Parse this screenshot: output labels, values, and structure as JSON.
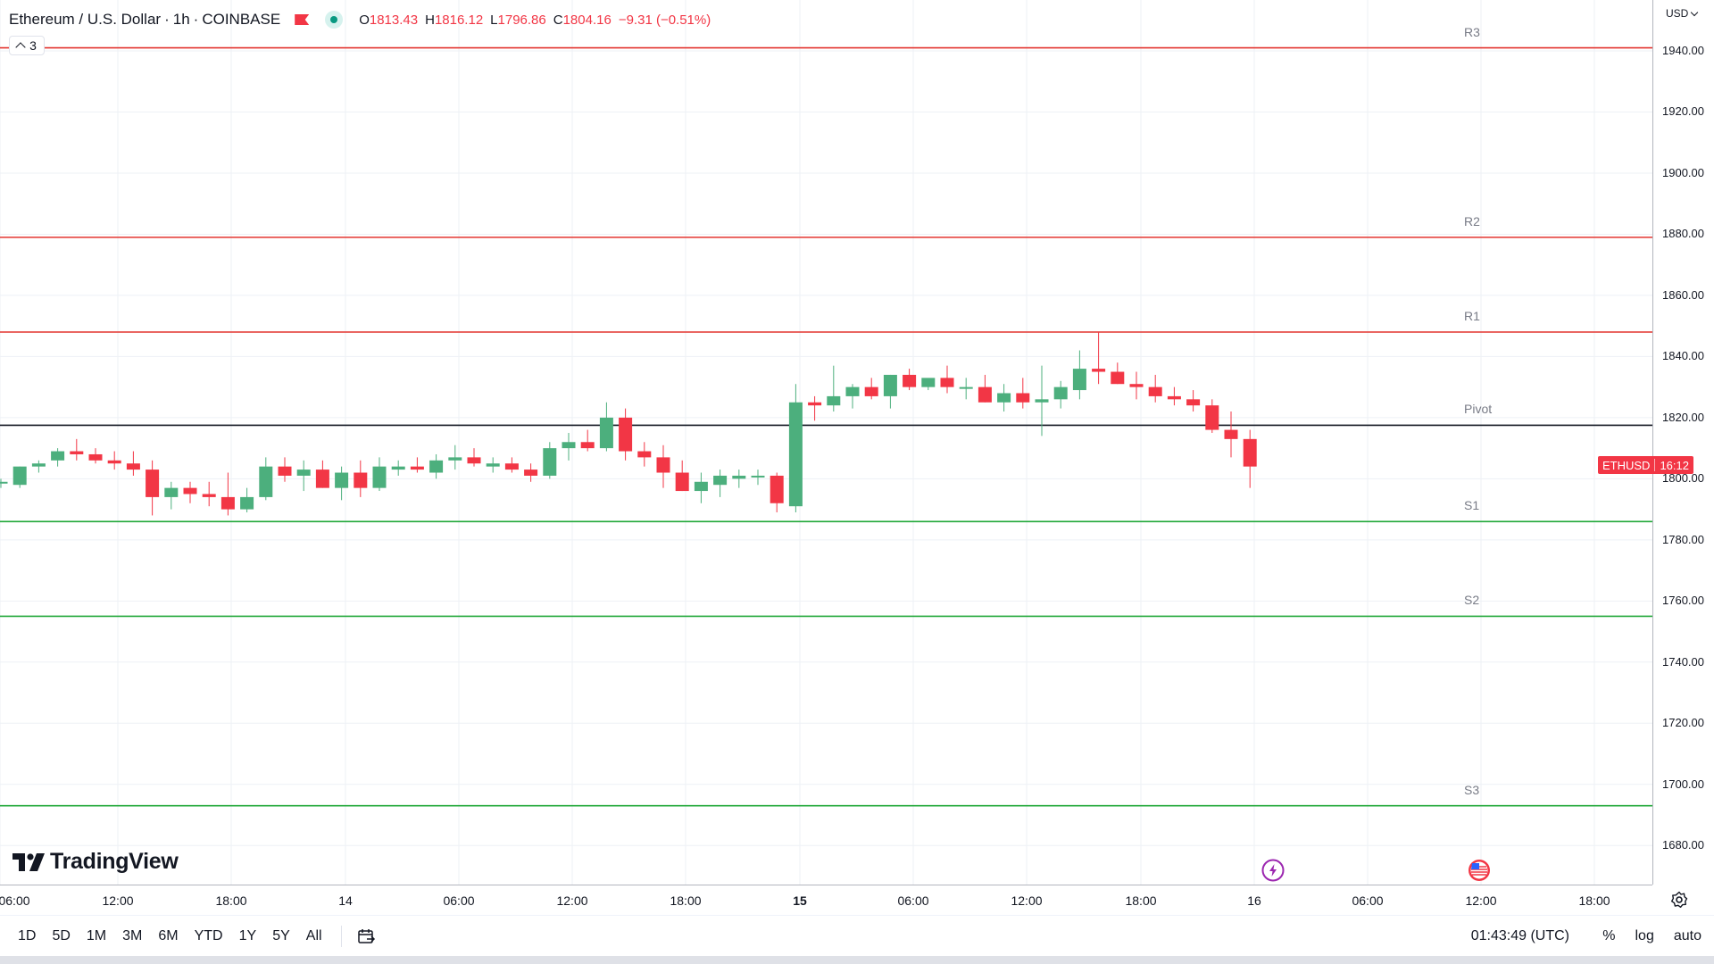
{
  "header": {
    "symbol_title": "Ethereum / U.S. Dollar",
    "interval": "1h",
    "exchange": "COINBASE",
    "ohlc": {
      "open_key": "O",
      "open": "1813.43",
      "high_key": "H",
      "high": "1816.12",
      "low_key": "L",
      "low": "1796.86",
      "close_key": "C",
      "close": "1804.16",
      "change": "−9.31 (−0.51%)"
    },
    "collapse_count": "3"
  },
  "colors": {
    "up": "#4caf7d",
    "down": "#f23645",
    "resistance": "#e3342f",
    "support": "#22a83a",
    "pivot": "#131722",
    "grid": "#eef1f6"
  },
  "levels": [
    {
      "name": "R3",
      "price": 1941.0,
      "color": "resistance"
    },
    {
      "name": "R2",
      "price": 1879.0,
      "color": "resistance"
    },
    {
      "name": "R1",
      "price": 1848.0,
      "color": "resistance"
    },
    {
      "name": "Pivot",
      "price": 1817.5,
      "color": "pivot"
    },
    {
      "name": "S1",
      "price": 1786.0,
      "color": "support"
    },
    {
      "name": "S2",
      "price": 1755.0,
      "color": "support"
    },
    {
      "name": "S3",
      "price": 1693.0,
      "color": "support"
    }
  ],
  "price_axis": {
    "currency": "USD",
    "ticks": [
      "1940.00",
      "1920.00",
      "1900.00",
      "1880.00",
      "1860.00",
      "1840.00",
      "1820.00",
      "1800.00",
      "1780.00",
      "1760.00",
      "1740.00",
      "1720.00",
      "1700.00",
      "1680.00"
    ]
  },
  "last_price_tag": {
    "symbol": "ETHUSD",
    "countdown": "16:12"
  },
  "time_axis": {
    "ticks": [
      "06:00",
      "12:00",
      "18:00",
      "14",
      "06:00",
      "12:00",
      "18:00",
      "15",
      "06:00",
      "12:00",
      "18:00",
      "16",
      "06:00",
      "12:00",
      "18:00"
    ],
    "bold": [
      false,
      false,
      false,
      false,
      false,
      false,
      false,
      true,
      false,
      false,
      false,
      false,
      false,
      false,
      false
    ]
  },
  "chart_data": {
    "type": "candlestick",
    "interval": "1h",
    "ylim": [
      1670,
      1950
    ],
    "candles": [
      [
        1799,
        1800,
        1797,
        1799
      ],
      [
        1798,
        1804,
        1797,
        1804
      ],
      [
        1804,
        1806,
        1802,
        1805
      ],
      [
        1806,
        1810,
        1804,
        1809
      ],
      [
        1809,
        1813,
        1806,
        1808
      ],
      [
        1808,
        1810,
        1805,
        1806
      ],
      [
        1806,
        1809,
        1803,
        1805
      ],
      [
        1805,
        1809,
        1801,
        1803
      ],
      [
        1803,
        1806,
        1788,
        1794
      ],
      [
        1794,
        1799,
        1790,
        1797
      ],
      [
        1797,
        1799,
        1792,
        1795
      ],
      [
        1795,
        1799,
        1791,
        1794
      ],
      [
        1794,
        1802,
        1788,
        1790
      ],
      [
        1790,
        1797,
        1789,
        1794
      ],
      [
        1794,
        1807,
        1793,
        1804
      ],
      [
        1804,
        1807,
        1799,
        1801
      ],
      [
        1801,
        1806,
        1796,
        1803
      ],
      [
        1803,
        1806,
        1797,
        1797
      ],
      [
        1797,
        1804,
        1793,
        1802
      ],
      [
        1802,
        1806,
        1794,
        1797
      ],
      [
        1797,
        1807,
        1796,
        1804
      ],
      [
        1803,
        1806,
        1801,
        1804
      ],
      [
        1804,
        1807,
        1802,
        1803
      ],
      [
        1802,
        1808,
        1800,
        1806
      ],
      [
        1806,
        1811,
        1803,
        1807
      ],
      [
        1807,
        1810,
        1804,
        1805
      ],
      [
        1804,
        1807,
        1802,
        1805
      ],
      [
        1805,
        1807,
        1802,
        1803
      ],
      [
        1803,
        1805,
        1799,
        1801
      ],
      [
        1801,
        1812,
        1800,
        1810
      ],
      [
        1810,
        1815,
        1806,
        1812
      ],
      [
        1812,
        1816,
        1809,
        1810
      ],
      [
        1810,
        1825,
        1809,
        1820
      ],
      [
        1820,
        1823,
        1806,
        1809
      ],
      [
        1809,
        1812,
        1804,
        1807
      ],
      [
        1807,
        1811,
        1797,
        1802
      ],
      [
        1802,
        1806,
        1796,
        1796
      ],
      [
        1796,
        1802,
        1792,
        1799
      ],
      [
        1798,
        1803,
        1794,
        1801
      ],
      [
        1800,
        1803,
        1797,
        1801
      ],
      [
        1801,
        1803,
        1798,
        1801
      ],
      [
        1801,
        1802,
        1789,
        1792
      ],
      [
        1791,
        1831,
        1789,
        1825
      ],
      [
        1825,
        1827,
        1819,
        1824
      ],
      [
        1824,
        1837,
        1822,
        1827
      ],
      [
        1827,
        1831,
        1823,
        1830
      ],
      [
        1830,
        1833,
        1826,
        1827
      ],
      [
        1827,
        1834,
        1823,
        1834
      ],
      [
        1834,
        1836,
        1829,
        1830
      ],
      [
        1830,
        1832,
        1829,
        1833
      ],
      [
        1833,
        1837,
        1828,
        1830
      ],
      [
        1830,
        1833,
        1826,
        1830
      ],
      [
        1830,
        1834,
        1825,
        1825
      ],
      [
        1825,
        1831,
        1822,
        1828
      ],
      [
        1828,
        1833,
        1823,
        1825
      ],
      [
        1825,
        1837,
        1814,
        1826
      ],
      [
        1826,
        1832,
        1823,
        1830
      ],
      [
        1829,
        1842,
        1826,
        1836
      ],
      [
        1836,
        1848,
        1831,
        1835
      ],
      [
        1835,
        1838,
        1831,
        1831
      ],
      [
        1831,
        1835,
        1826,
        1830
      ],
      [
        1830,
        1834,
        1825,
        1827
      ],
      [
        1827,
        1830,
        1824,
        1826
      ],
      [
        1826,
        1829,
        1822,
        1824
      ],
      [
        1824,
        1826,
        1815,
        1816
      ],
      [
        1816,
        1822,
        1807,
        1813
      ],
      [
        1813,
        1816,
        1797,
        1804
      ]
    ]
  },
  "events": {
    "lightning_label": "⚡"
  },
  "bottom_bar": {
    "ranges": [
      "1D",
      "5D",
      "1M",
      "3M",
      "6M",
      "YTD",
      "1Y",
      "5Y",
      "All"
    ],
    "clock": "01:43:49 (UTC)",
    "percent": "%",
    "log": "log",
    "auto": "auto"
  },
  "branding": {
    "logo_text": "TradingView"
  }
}
